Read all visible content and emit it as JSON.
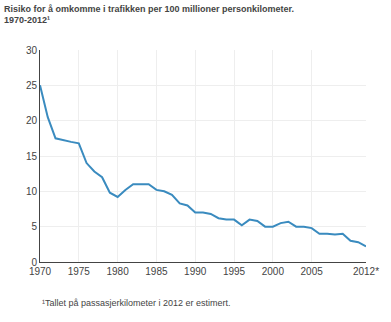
{
  "chart_data": {
    "type": "line",
    "title": "Risiko for å omkomme i trafikken per 100 millioner personkilometer.",
    "subtitle": "1970-2012¹",
    "annotations": [
      "¹Tallet på passasjerkilometer i 2012 er estimert."
    ],
    "x": [
      1970,
      1971,
      1972,
      1973,
      1974,
      1975,
      1976,
      1977,
      1978,
      1979,
      1980,
      1981,
      1982,
      1983,
      1984,
      1985,
      1986,
      1987,
      1988,
      1989,
      1990,
      1991,
      1992,
      1993,
      1994,
      1995,
      1996,
      1997,
      1998,
      1999,
      2000,
      2001,
      2002,
      2003,
      2004,
      2005,
      2006,
      2007,
      2008,
      2009,
      2010,
      2011,
      2012
    ],
    "values": [
      25.0,
      20.5,
      17.5,
      17.2,
      17.0,
      16.8,
      14.0,
      12.8,
      12.0,
      9.8,
      9.2,
      10.2,
      11.0,
      11.0,
      11.0,
      10.2,
      10.0,
      9.5,
      8.3,
      8.0,
      7.0,
      7.0,
      6.8,
      6.2,
      6.0,
      6.0,
      5.2,
      6.0,
      5.8,
      5.0,
      5.0,
      5.5,
      5.7,
      5.0,
      5.0,
      4.8,
      4.0,
      4.0,
      3.9,
      4.0,
      3.0,
      2.8,
      2.2
    ],
    "color": "#3a8bbf",
    "xlim": [
      1970,
      2012
    ],
    "xticks": [
      1970,
      1975,
      1980,
      1985,
      1990,
      1995,
      2000,
      2005,
      {
        "value": 2012,
        "label": "2012*"
      }
    ],
    "ylim": [
      0,
      30
    ],
    "yticks": [
      0,
      5,
      10,
      15,
      20,
      25,
      30
    ],
    "grid": true
  }
}
